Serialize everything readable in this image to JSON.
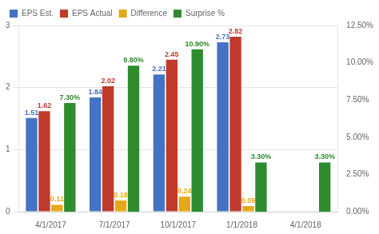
{
  "chart_data": {
    "type": "bar",
    "categories": [
      "4/1/2017",
      "7/1/2017",
      "10/1/2017",
      "1/1/2018",
      "4/1/2018"
    ],
    "series": [
      {
        "name": "EPS Est.",
        "color": "#4472c4",
        "values": [
          1.51,
          1.84,
          2.21,
          2.73,
          null
        ]
      },
      {
        "name": "EPS Actual",
        "color": "#c0392b",
        "values": [
          1.62,
          2.02,
          2.45,
          2.82,
          null
        ]
      },
      {
        "name": "Difference",
        "color": "#e6a817",
        "values": [
          0.11,
          0.18,
          0.24,
          0.09,
          null
        ]
      },
      {
        "name": "Surprise %",
        "color": "#2e8b2e",
        "axis": "y2",
        "values": [
          7.3,
          9.8,
          10.9,
          3.3,
          3.3
        ],
        "value_labels": [
          "7.30%",
          "9.80%",
          "10.90%",
          "3.30%",
          "3.30%"
        ]
      }
    ],
    "ylim": [
      0,
      3
    ],
    "yticks": [
      0,
      1,
      2,
      3
    ],
    "y2lim": [
      0,
      12.5
    ],
    "y2ticks": [
      {
        "value": 0.0,
        "label": "0.00%"
      },
      {
        "value": 2.5,
        "label": "2.50%"
      },
      {
        "value": 5.0,
        "label": "5.00%"
      },
      {
        "value": 7.5,
        "label": "7.50%"
      },
      {
        "value": 10.0,
        "label": "10.00%"
      },
      {
        "value": 12.5,
        "label": "12.50%"
      }
    ],
    "grid": true,
    "legend": "upper left",
    "data_labels": true
  }
}
